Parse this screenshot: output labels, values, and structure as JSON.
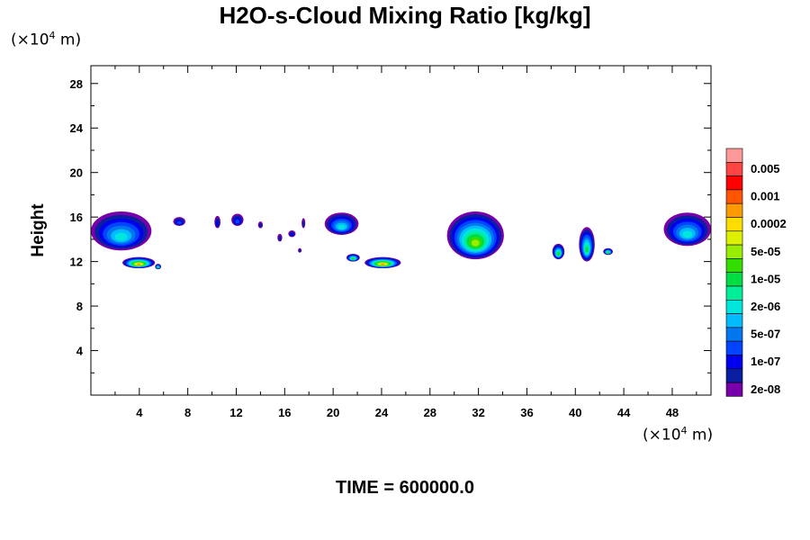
{
  "chart_data": {
    "type": "heatmap",
    "title": "H2O-s-Cloud Mixing Ratio [kg/kg]",
    "xlabel": "",
    "ylabel": "Height",
    "x_unit": {
      "prefix": "(×10",
      "exp": "4",
      "suffix": " m)"
    },
    "y_unit": {
      "prefix": "(×10",
      "exp": "4",
      "suffix": " m)"
    },
    "xlim": [
      0,
      51.2
    ],
    "ylim": [
      0,
      29.6
    ],
    "x_ticks": [
      4,
      8,
      12,
      16,
      20,
      24,
      28,
      32,
      36,
      40,
      44,
      48
    ],
    "y_ticks": [
      4,
      8,
      12,
      16,
      20,
      24,
      28
    ],
    "colorbar": {
      "labels": [
        "0.005",
        "0.001",
        "0.0002",
        "5e-05",
        "1e-05",
        "2e-06",
        "5e-07",
        "1e-07",
        "2e-08"
      ],
      "colors": [
        "#ff9999",
        "#ff4444",
        "#ff0000",
        "#ff5500",
        "#ff9900",
        "#ffdd00",
        "#ddf000",
        "#99ee00",
        "#33dd00",
        "#00dd44",
        "#00ee99",
        "#00e5dd",
        "#00bbff",
        "#0077ee",
        "#0044ff",
        "#0000ee",
        "#0a1ea0",
        "#7700aa"
      ]
    },
    "cloud_regions": [
      {
        "x": [
          0,
          5
        ],
        "y": [
          13,
          16.5
        ],
        "max_level": 6
      },
      {
        "x": [
          2.6,
          5.3
        ],
        "y": [
          11.4,
          12.4
        ],
        "max_level": 13
      },
      {
        "x": [
          5.3,
          5.8
        ],
        "y": [
          11.3,
          11.8
        ],
        "max_level": 8
      },
      {
        "x": [
          6.8,
          7.8
        ],
        "y": [
          15.2,
          16.0
        ],
        "max_level": 3
      },
      {
        "x": [
          10.2,
          10.7
        ],
        "y": [
          15.0,
          16.1
        ],
        "max_level": 2
      },
      {
        "x": [
          11.6,
          12.6
        ],
        "y": [
          15.2,
          16.3
        ],
        "max_level": 3
      },
      {
        "x": [
          13.8,
          14.2
        ],
        "y": [
          15.0,
          15.6
        ],
        "max_level": 1
      },
      {
        "x": [
          15.4,
          15.8
        ],
        "y": [
          13.8,
          14.5
        ],
        "max_level": 1
      },
      {
        "x": [
          16.3,
          16.9
        ],
        "y": [
          14.2,
          14.8
        ],
        "max_level": 2
      },
      {
        "x": [
          17.4,
          17.7
        ],
        "y": [
          15.0,
          15.9
        ],
        "max_level": 1
      },
      {
        "x": [
          17.1,
          17.4
        ],
        "y": [
          12.8,
          13.2
        ],
        "max_level": 1
      },
      {
        "x": [
          19.3,
          22.1
        ],
        "y": [
          14.4,
          16.4
        ],
        "max_level": 6
      },
      {
        "x": [
          21.1,
          22.2
        ],
        "y": [
          12.0,
          12.7
        ],
        "max_level": 9
      },
      {
        "x": [
          22.6,
          25.6
        ],
        "y": [
          11.4,
          12.4
        ],
        "max_level": 13
      },
      {
        "x": [
          29.4,
          34.1
        ],
        "y": [
          12.2,
          16.5
        ],
        "max_level": 10
      },
      {
        "x": [
          38.1,
          39.1
        ],
        "y": [
          12.2,
          13.6
        ],
        "max_level": 9
      },
      {
        "x": [
          40.3,
          41.6
        ],
        "y": [
          12.0,
          15.1
        ],
        "max_level": 8
      },
      {
        "x": [
          42.3,
          43.1
        ],
        "y": [
          12.6,
          13.2
        ],
        "max_level": 9
      },
      {
        "x": [
          47.3,
          51.2
        ],
        "y": [
          13.4,
          16.4
        ],
        "max_level": 6
      }
    ]
  },
  "time_label": "TIME = 600000.0"
}
